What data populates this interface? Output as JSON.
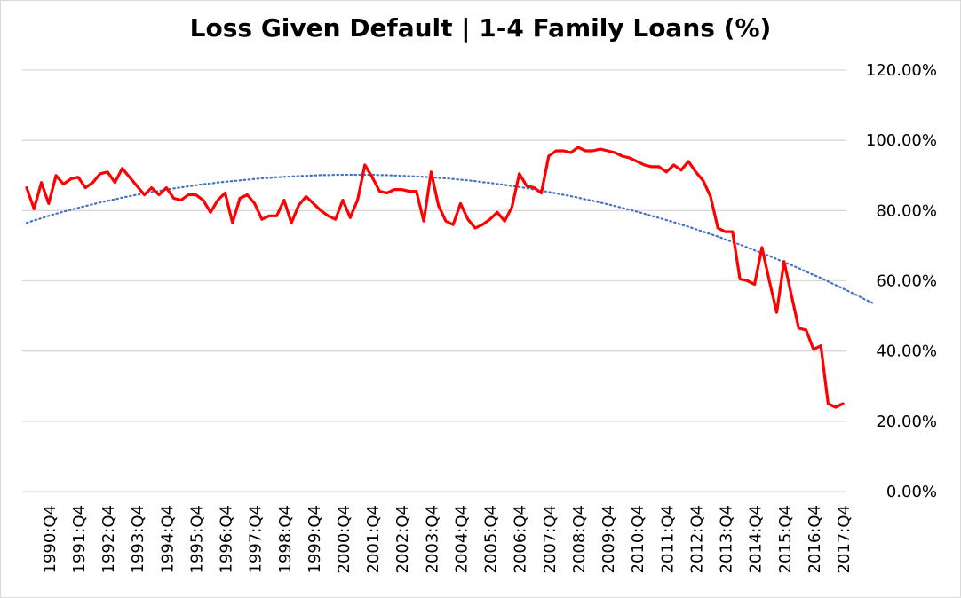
{
  "chart_data": {
    "type": "line",
    "title": "Loss Given Default | 1-4 Family Loans (%)",
    "xlabel": "",
    "ylabel": "",
    "ylim": [
      0,
      120
    ],
    "y_ticks": [
      "0.00%",
      "20.00%",
      "40.00%",
      "60.00%",
      "80.00%",
      "100.00%",
      "120.00%"
    ],
    "x_tick_labels": [
      "1990:Q4",
      "1991:Q4",
      "1992:Q4",
      "1993:Q4",
      "1994:Q4",
      "1995:Q4",
      "1996:Q4",
      "1997:Q4",
      "1998:Q4",
      "1999:Q4",
      "2000:Q4",
      "2001:Q4",
      "2002:Q4",
      "2003:Q4",
      "2004:Q4",
      "2005:Q4",
      "2006:Q4",
      "2007:Q4",
      "2008:Q4",
      "2009:Q4",
      "2010:Q4",
      "2011:Q4",
      "2012:Q4",
      "2013:Q4",
      "2014:Q4",
      "2015:Q4",
      "2016:Q4",
      "2017:Q4"
    ],
    "x_start": "1990:Q1",
    "x_end": "2017:Q4",
    "grid": true,
    "legend": "none",
    "series": [
      {
        "color": "#ff0000",
        "style": "solid",
        "values": [
          86.5,
          80.5,
          88,
          82,
          90,
          87.5,
          89,
          89.5,
          86.5,
          88,
          90.5,
          91,
          88,
          92,
          89.5,
          87,
          84.5,
          86.5,
          84.5,
          86.5,
          83.5,
          83,
          84.5,
          84.5,
          83,
          79.5,
          83,
          85,
          76.5,
          83.5,
          84.5,
          82,
          77.5,
          78.5,
          78.5,
          83,
          76.5,
          81.5,
          84,
          82,
          80,
          78.5,
          77.5,
          83,
          78,
          83,
          93,
          89.5,
          85.5,
          85,
          86,
          86,
          85.5,
          85.5,
          77,
          91,
          81.5,
          77,
          76,
          82,
          77.5,
          75,
          76,
          77.5,
          79.5,
          77,
          81,
          90.5,
          87,
          86.5,
          85,
          95.5,
          97,
          97,
          96.5,
          98,
          97,
          97,
          97.5,
          97,
          96.5,
          95.5,
          95,
          94,
          93,
          92.5,
          92.5,
          91,
          93,
          91.5,
          94,
          91,
          88.5,
          84,
          75,
          74,
          74,
          60.5,
          60,
          59,
          69.5,
          60,
          51,
          65.5,
          56,
          46.5,
          46,
          40.5,
          41.5,
          25,
          24,
          25
        ]
      },
      {
        "color": "#4472c4",
        "style": "dotted",
        "values": [
          76.5,
          77.2,
          77.8,
          78.5,
          79.1,
          79.7,
          80.2,
          80.8,
          81.3,
          81.8,
          82.3,
          82.8,
          83.2,
          83.7,
          84.1,
          84.5,
          84.9,
          85.3,
          85.6,
          86,
          86.3,
          86.6,
          86.9,
          87.2,
          87.5,
          87.7,
          88,
          88.2,
          88.4,
          88.6,
          88.8,
          89,
          89.2,
          89.3,
          89.5,
          89.6,
          89.7,
          89.8,
          89.9,
          90,
          90.1,
          90.1,
          90.2,
          90.2,
          90.2,
          90.2,
          90.2,
          90.2,
          90.1,
          90.1,
          90,
          89.9,
          89.8,
          89.7,
          89.6,
          89.5,
          89.3,
          89.2,
          89,
          88.8,
          88.6,
          88.4,
          88.1,
          87.9,
          87.6,
          87.3,
          87,
          86.7,
          86.4,
          86,
          85.7,
          85.3,
          84.9,
          84.5,
          84.1,
          83.7,
          83.2,
          82.8,
          82.3,
          81.8,
          81.3,
          80.8,
          80.2,
          79.7,
          79.1,
          78.5,
          77.9,
          77.3,
          76.7,
          76,
          75.4,
          74.7,
          74,
          73.3,
          72.6,
          71.8,
          71.1,
          70.3,
          69.5,
          68.7,
          67.9,
          67.1,
          66.2,
          65.3,
          64.5,
          63.6,
          62.6,
          61.7,
          60.8,
          59.8,
          58.8,
          57.8,
          56.8,
          55.8,
          54.7,
          53.7
        ]
      }
    ]
  }
}
